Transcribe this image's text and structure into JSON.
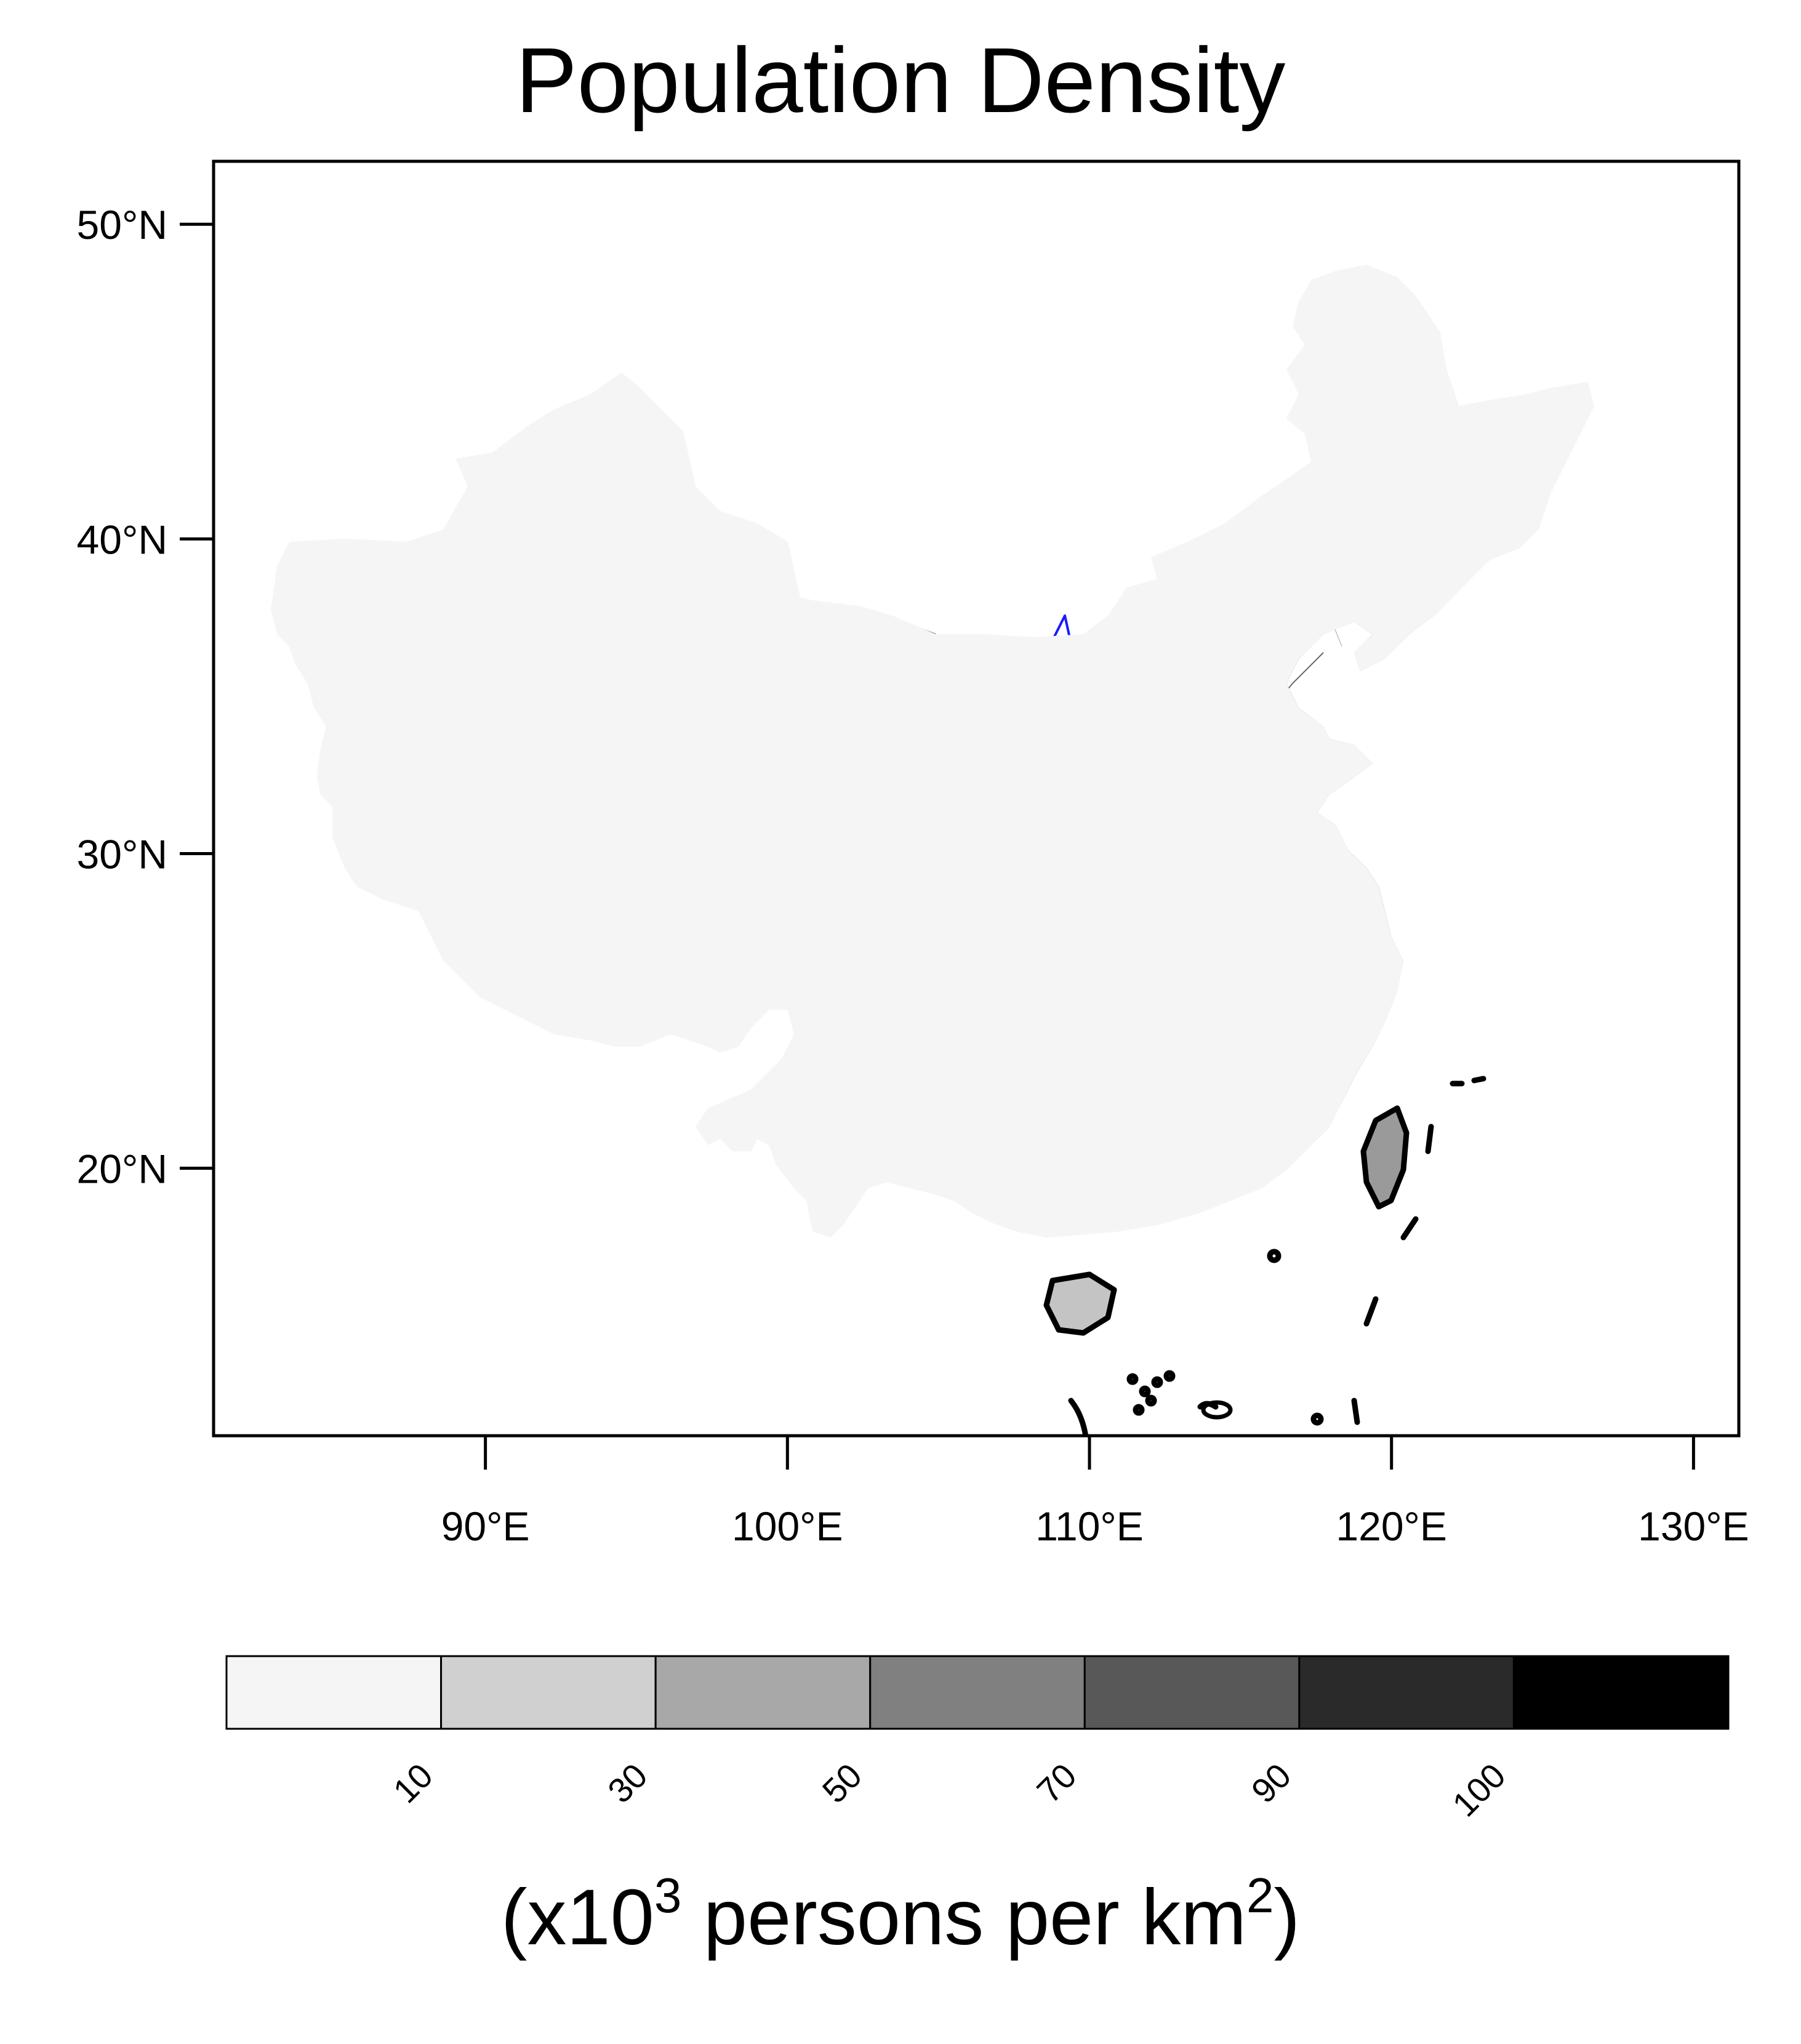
{
  "title": "Population Density",
  "units": {
    "prefix": "(x10",
    "exp1": "3",
    "middle": " persons per km",
    "exp2": "2",
    "suffix": ")"
  },
  "map": {
    "lon_range": [
      81,
      131.5
    ],
    "lat_range": [
      11.5,
      52
    ],
    "y_ticks": [
      {
        "value": 50,
        "label": "50°N"
      },
      {
        "value": 40,
        "label": "40°N"
      },
      {
        "value": 30,
        "label": "30°N"
      },
      {
        "value": 20,
        "label": "20°N"
      }
    ],
    "x_ticks": [
      {
        "value": 90,
        "label": "90°E"
      },
      {
        "value": 100,
        "label": "100°E"
      },
      {
        "value": 110,
        "label": "110°E"
      },
      {
        "value": 120,
        "label": "120°E"
      },
      {
        "value": 130,
        "label": "130°E"
      }
    ],
    "colors": {
      "border": "#000000",
      "rivers": "#1a1aff",
      "land_base": "#f5f5f5",
      "province_lines": "#555555"
    }
  },
  "colorbar": {
    "bins": [
      {
        "color": "#f5f5f5"
      },
      {
        "color": "#d0d0d0"
      },
      {
        "color": "#a8a8a8"
      },
      {
        "color": "#808080"
      },
      {
        "color": "#585858"
      },
      {
        "color": "#2a2a2a"
      },
      {
        "color": "#000000"
      }
    ],
    "labels": [
      "10",
      "30",
      "50",
      "70",
      "90",
      "100"
    ]
  }
}
